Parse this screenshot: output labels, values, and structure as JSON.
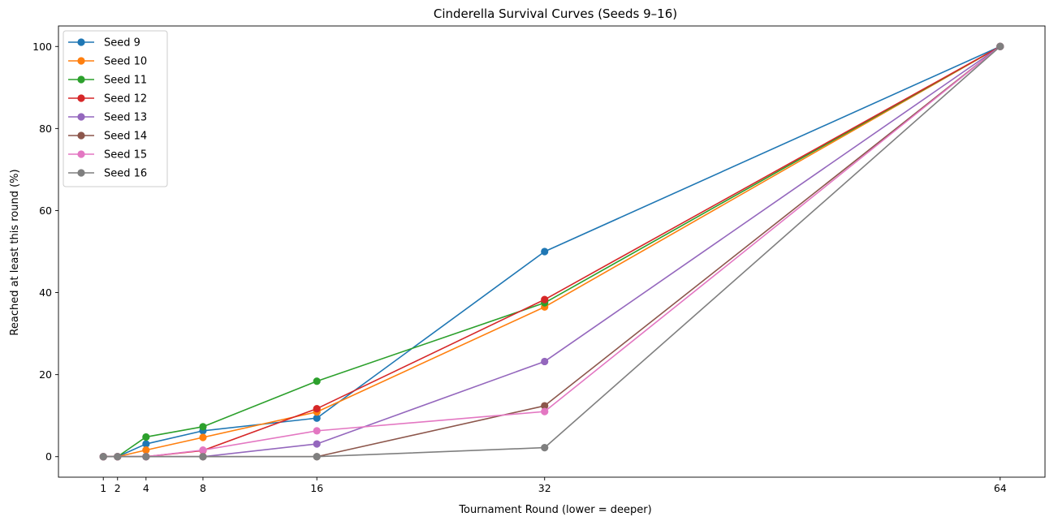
{
  "chart_data": {
    "type": "line",
    "title": "Cinderella Survival Curves (Seeds 9–16)",
    "xlabel": "Tournament Round (lower = deeper)",
    "ylabel": "Reached at least this round (%)",
    "x": [
      1,
      2,
      4,
      8,
      16,
      32,
      64
    ],
    "xticks": [
      1,
      2,
      4,
      8,
      16,
      32,
      64
    ],
    "yticks": [
      0,
      20,
      40,
      60,
      80,
      100
    ],
    "xlim": [
      -2.15,
      67.15
    ],
    "ylim": [
      -5,
      105
    ],
    "grid": false,
    "legend_position": "top-left",
    "series": [
      {
        "name": "Seed 9",
        "color": "#1f77b4",
        "values": [
          0,
          0,
          3.1,
          6.3,
          9.4,
          50.0,
          100
        ]
      },
      {
        "name": "Seed 10",
        "color": "#ff7f0e",
        "values": [
          0,
          0,
          1.6,
          4.7,
          10.9,
          36.5,
          100
        ]
      },
      {
        "name": "Seed 11",
        "color": "#2ca02c",
        "values": [
          0,
          0,
          4.8,
          7.3,
          18.4,
          37.5,
          100
        ]
      },
      {
        "name": "Seed 12",
        "color": "#d62728",
        "values": [
          0,
          0,
          0,
          1.5,
          11.7,
          38.3,
          100
        ]
      },
      {
        "name": "Seed 13",
        "color": "#9467bd",
        "values": [
          0,
          0,
          0,
          0,
          3.1,
          23.2,
          100
        ]
      },
      {
        "name": "Seed 14",
        "color": "#8c564b",
        "values": [
          0,
          0,
          0,
          0,
          0,
          12.4,
          100
        ]
      },
      {
        "name": "Seed 15",
        "color": "#e377c2",
        "values": [
          0,
          0,
          0,
          1.6,
          6.3,
          11.0,
          100
        ]
      },
      {
        "name": "Seed 16",
        "color": "#7f7f7f",
        "values": [
          0,
          0,
          0,
          0,
          0,
          2.2,
          100
        ]
      }
    ]
  }
}
